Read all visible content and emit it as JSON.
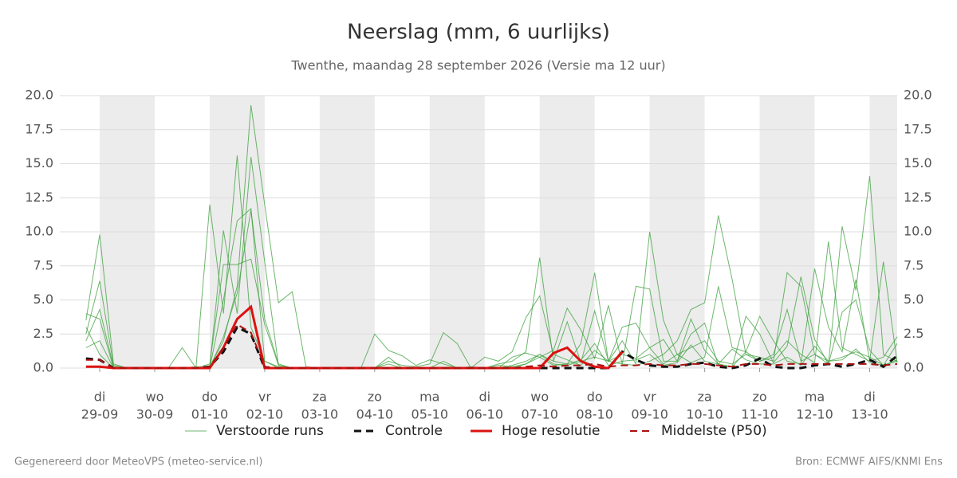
{
  "chart_data": {
    "type": "line",
    "title": "Neerslag (mm, 6 uurlijks)",
    "subtitle": "Twenthe, maandag 28 september 2026 (Versie ma 12 uur)",
    "footer_left": "Gegenereerd door MeteoVPS (meteo-service.nl)",
    "footer_right": "Bron: ECMWF AIFS/KNMI Ens",
    "categories": [
      null,
      {
        "day": "di",
        "date": "29-09"
      },
      null,
      null,
      null,
      {
        "day": "wo",
        "date": "30-09"
      },
      null,
      null,
      null,
      {
        "day": "do",
        "date": "01-10"
      },
      null,
      null,
      null,
      {
        "day": "vr",
        "date": "02-10"
      },
      null,
      null,
      null,
      {
        "day": "za",
        "date": "03-10"
      },
      null,
      null,
      null,
      {
        "day": "zo",
        "date": "04-10"
      },
      null,
      null,
      null,
      {
        "day": "ma",
        "date": "05-10"
      },
      null,
      null,
      null,
      {
        "day": "di",
        "date": "06-10"
      },
      null,
      null,
      null,
      {
        "day": "wo",
        "date": "07-10"
      },
      null,
      null,
      null,
      {
        "day": "do",
        "date": "08-10"
      },
      null,
      null,
      null,
      {
        "day": "vr",
        "date": "09-10"
      },
      null,
      null,
      null,
      {
        "day": "za",
        "date": "10-10"
      },
      null,
      null,
      null,
      {
        "day": "zo",
        "date": "11-10"
      },
      null,
      null,
      null,
      {
        "day": "ma",
        "date": "12-10"
      },
      null,
      null,
      null,
      {
        "day": "di",
        "date": "13-10"
      },
      null,
      null
    ],
    "ylim": [
      0,
      20
    ],
    "yticks": [
      {
        "value": 0,
        "label": "0.0"
      },
      {
        "value": 2.5,
        "label": "2.5"
      },
      {
        "value": 5,
        "label": "5.0"
      },
      {
        "value": 7.5,
        "label": "7.5"
      },
      {
        "value": 10,
        "label": "10.0"
      },
      {
        "value": 12.5,
        "label": "12.5"
      },
      {
        "value": 15,
        "label": "15.0"
      },
      {
        "value": 17.5,
        "label": "17.5"
      },
      {
        "value": 20,
        "label": "20.0"
      }
    ],
    "grid": true,
    "ensemble": {
      "name": "Verstoorde runs",
      "color": "#3c9f3c",
      "runs": [
        [
          3.5,
          9.8,
          0.3,
          0,
          0,
          0,
          0,
          0,
          0,
          0.1,
          2.0,
          6.0,
          19.3,
          12.0,
          4.8,
          5.6,
          0.1,
          0,
          0,
          0,
          0,
          0,
          0.3,
          0,
          0,
          0,
          0,
          0,
          0,
          0,
          0,
          0.2,
          0.5,
          1.0,
          0.3,
          0.2,
          0.5,
          0.8,
          0.5,
          2.0,
          0.3,
          10.0,
          3.5,
          1.0,
          1.5,
          2.0,
          0.5,
          0.3,
          1.0,
          0.8,
          0.5,
          7.0,
          6.0,
          1.0,
          0.5,
          0.8,
          1.2,
          0.8,
          0.2,
          0.5
        ],
        [
          2.5,
          6.4,
          0.2,
          0,
          0,
          0,
          0,
          0,
          0,
          12.0,
          4.0,
          15.6,
          3.0,
          0.5,
          0,
          0,
          0,
          0,
          0,
          0,
          0,
          2.5,
          1.3,
          0.9,
          0.2,
          0.6,
          0.3,
          0,
          0,
          0,
          0.3,
          0.5,
          1.2,
          8.1,
          0.5,
          0.3,
          1.8,
          7.0,
          0.5,
          0.3,
          0.2,
          0.5,
          1.0,
          2.0,
          4.3,
          4.8,
          11.2,
          6.5,
          1.0,
          0.5,
          1.0,
          4.3,
          0.5,
          1.0,
          0.3,
          10.4,
          5.7,
          14.1,
          1.0,
          0.5
        ],
        [
          4.0,
          3.6,
          0,
          0,
          0,
          0,
          0,
          1.5,
          0,
          0.1,
          10.1,
          4.0,
          15.5,
          7.8,
          0.2,
          0,
          0,
          0,
          0,
          0,
          0,
          0,
          0.5,
          0.2,
          0.1,
          0.3,
          2.6,
          1.8,
          0,
          0,
          0,
          0.8,
          1.1,
          0.8,
          1.3,
          4.4,
          2.8,
          0.7,
          4.6,
          0.3,
          6.0,
          5.8,
          0.5,
          0.5,
          2.5,
          3.3,
          0.2,
          0.1,
          1.2,
          3.8,
          2.0,
          0.5,
          0.3,
          7.3,
          3.0,
          1.2,
          6.5,
          0.5,
          7.8,
          0.4
        ],
        [
          1.5,
          2.0,
          0,
          0,
          0,
          0,
          0,
          0,
          0.1,
          0,
          5.0,
          10.8,
          11.7,
          0.5,
          0.1,
          0,
          0,
          0,
          0,
          0,
          0,
          0,
          0.8,
          0,
          0,
          0,
          0,
          0,
          0,
          0,
          0,
          0,
          0.3,
          1.0,
          0.5,
          3.4,
          0.4,
          4.2,
          0.5,
          3.0,
          3.3,
          1.5,
          0.3,
          1.0,
          0.4,
          0.8,
          6.0,
          1.5,
          1.2,
          0.5,
          0.8,
          2.0,
          1.0,
          0.4,
          9.3,
          1.5,
          1.0,
          0.5,
          0.8,
          2.3
        ],
        [
          2.0,
          4.3,
          0.1,
          0,
          0,
          0,
          0,
          0,
          0,
          0.3,
          7.6,
          7.6,
          8.0,
          3.2,
          0.2,
          0,
          0,
          0,
          0,
          0,
          0,
          0,
          0,
          0,
          0,
          0,
          0.5,
          0,
          0,
          0.8,
          0.5,
          1.2,
          3.7,
          5.3,
          1.0,
          0.6,
          0.2,
          1.3,
          0.5,
          1.0,
          0.7,
          1.5,
          2.1,
          0.5,
          3.6,
          1.3,
          0.3,
          0.1,
          3.8,
          2.5,
          0.4,
          1.6,
          6.7,
          2.1,
          0.3,
          4.1,
          5.0,
          1.3,
          0.2,
          1.8
        ],
        [
          3.0,
          1.0,
          0,
          0,
          0,
          0,
          0,
          0,
          0,
          0,
          2.3,
          5.5,
          11.6,
          3.6,
          0.3,
          0,
          0,
          0,
          0,
          0,
          0,
          0,
          0,
          0,
          0,
          0,
          0,
          0,
          0.1,
          0,
          0.2,
          0.1,
          0.3,
          0.8,
          0.2,
          0.3,
          0.6,
          1.8,
          0.2,
          0.5,
          0.6,
          1.0,
          0.2,
          0.4,
          1.7,
          0.5,
          0.3,
          1.4,
          0.6,
          0.3,
          0.3,
          0.8,
          0.2,
          1.6,
          0.5,
          0.6,
          1.4,
          0.4,
          0.2,
          0.6
        ]
      ]
    },
    "series": [
      {
        "name": "Controle",
        "color": "#111111",
        "dashed": true,
        "width": 3,
        "values": [
          0.7,
          0.6,
          0,
          0,
          0,
          0,
          0,
          0,
          0,
          0.1,
          1.2,
          3.0,
          2.5,
          0,
          0,
          0,
          0,
          0,
          0,
          0,
          0,
          0,
          0,
          0,
          0,
          0,
          0,
          0,
          0,
          0,
          0,
          0,
          0,
          0,
          0,
          0,
          0,
          0,
          0,
          1.2,
          0.6,
          0.2,
          0.1,
          0.1,
          0.3,
          0.4,
          0.1,
          0,
          0.2,
          0.7,
          0.1,
          0,
          0,
          0.2,
          0.3,
          0.1,
          0.3,
          0.6,
          0.1,
          0.9
        ]
      },
      {
        "name": "Hoge resolutie",
        "color": "#dd1111",
        "dashed": false,
        "width": 3,
        "values": [
          0.1,
          0.1,
          0,
          0,
          0,
          0,
          0,
          0,
          0,
          0,
          1.5,
          3.6,
          4.5,
          0,
          0,
          0,
          0,
          0,
          0,
          0,
          0,
          0,
          0,
          0,
          0,
          0,
          0,
          0,
          0,
          0,
          0,
          0,
          0,
          0,
          1.1,
          1.5,
          0.5,
          0.1,
          0,
          1.2,
          null,
          null,
          null,
          null,
          null,
          null,
          null,
          null,
          null,
          null,
          null,
          null,
          null,
          null,
          null,
          null,
          null,
          null,
          null,
          null
        ]
      },
      {
        "name": "Middelste (P50)",
        "color": "#aa1111",
        "dashed": true,
        "width": 2,
        "values": [
          0.6,
          0.6,
          0,
          0,
          0,
          0,
          0,
          0,
          0,
          0.1,
          1.5,
          3.2,
          2.6,
          0.1,
          0,
          0,
          0,
          0,
          0,
          0,
          0,
          0,
          0,
          0,
          0,
          0,
          0,
          0,
          0,
          0,
          0,
          0,
          0.1,
          0.2,
          0.1,
          0.2,
          0.2,
          0.3,
          0.1,
          0.2,
          0.2,
          0.3,
          0.2,
          0.2,
          0.3,
          0.3,
          0.2,
          0.1,
          0.3,
          0.3,
          0.2,
          0.3,
          0.3,
          0.3,
          0.3,
          0.3,
          0.3,
          0.3,
          0.2,
          0.3
        ]
      }
    ]
  }
}
